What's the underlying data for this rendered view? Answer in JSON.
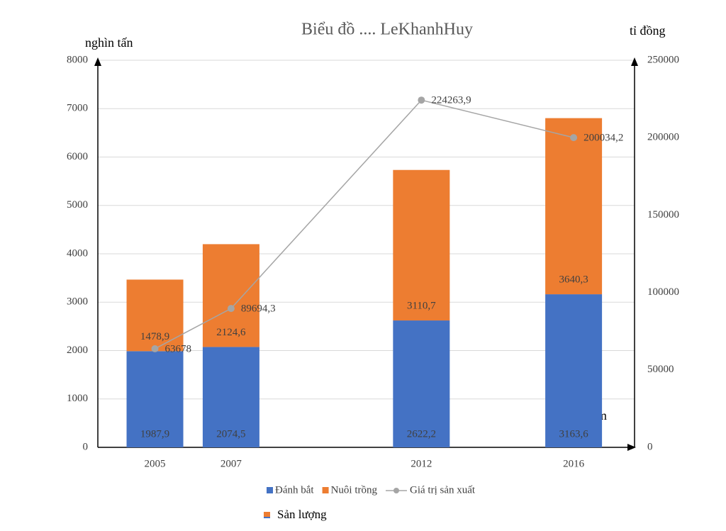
{
  "chart_data": {
    "type": "bar-line",
    "title": "Biểu đồ .... LeKhanhHuy",
    "y_label": "nghìn tấn",
    "y2_label": "tỉ đồng",
    "x_label": "năm",
    "x": [
      2005,
      2007,
      2012,
      2016
    ],
    "xlim": [
      2003.5,
      2017.6
    ],
    "ylim": [
      0,
      8000
    ],
    "yticks": [
      0,
      1000,
      2000,
      3000,
      4000,
      5000,
      6000,
      7000,
      8000
    ],
    "y2lim": [
      0,
      250000
    ],
    "y2ticks": [
      0,
      50000,
      100000,
      150000,
      200000,
      250000
    ],
    "grid": true,
    "series": [
      {
        "name": "Đánh bắt",
        "color": "#4472c4",
        "kind": "bar",
        "values": [
          1987.9,
          2074.5,
          2622.2,
          3163.6
        ],
        "value_labels": [
          "1987,9",
          "2074,5",
          "2622,2",
          "3163,6"
        ]
      },
      {
        "name": "Nuôi trồng",
        "color": "#ed7d31",
        "kind": "bar",
        "values": [
          1478.9,
          2124.6,
          3110.7,
          3640.3
        ],
        "value_labels": [
          "1478,9",
          "2124,6",
          "3110,7",
          "3640,3"
        ]
      },
      {
        "name": "Giá trị sản xuất",
        "color": "#a5a5a5",
        "kind": "line",
        "axis": "y2",
        "values": [
          63678,
          89694.3,
          224263.9,
          200034.2
        ],
        "value_labels": [
          "63678",
          "89694,3",
          "224263,9",
          "200034,2"
        ]
      }
    ],
    "extra_legend": {
      "name": "Sản lượng",
      "color": "#ed7d31"
    }
  }
}
